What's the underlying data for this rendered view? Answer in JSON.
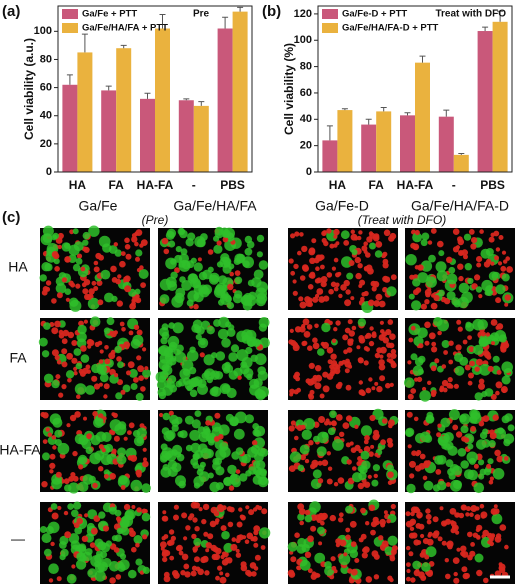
{
  "chart_data": [
    {
      "type": "bar",
      "panel_label": "(a)",
      "annotation": "Pre",
      "ylabel": "Cell viability (a.u.)",
      "categories": [
        "HA",
        "FA",
        "HA-FA",
        "-",
        "PBS"
      ],
      "series": [
        {
          "name": "Ga/Fe + PTT",
          "color": "#c9587a",
          "values": [
            62,
            58,
            52,
            51,
            102
          ],
          "errors": [
            7,
            3,
            4,
            1,
            8
          ]
        },
        {
          "name": "Ga/Fe/HA/FA + PTT",
          "color": "#eab23e",
          "values": [
            85,
            88,
            102,
            47,
            114
          ],
          "errors": [
            13,
            2,
            10,
            3,
            3
          ]
        }
      ],
      "ylim": [
        0,
        118
      ],
      "yticks": [
        0,
        20,
        40,
        60,
        80,
        100
      ],
      "legend": "upper left"
    },
    {
      "type": "bar",
      "panel_label": "(b)",
      "annotation": "Treat with DFO",
      "ylabel": "Cell viability (%)",
      "categories": [
        "HA",
        "FA",
        "HA-FA",
        "-",
        "PBS"
      ],
      "series": [
        {
          "name": "Ga/Fe-D + PTT",
          "color": "#c9587a",
          "values": [
            24,
            36,
            43,
            42,
            107
          ],
          "errors": [
            11,
            4,
            2,
            5,
            3
          ]
        },
        {
          "name": "Ga/Fe/HA/FA-D + PTT",
          "color": "#eab23e",
          "values": [
            47,
            46,
            83,
            13,
            114
          ],
          "errors": [
            1,
            3,
            5,
            1,
            8
          ]
        }
      ],
      "ylim": [
        0,
        126
      ],
      "yticks": [
        0,
        20,
        40,
        60,
        80,
        100,
        120
      ],
      "legend": "upper left"
    }
  ],
  "panel_c": {
    "panel_label": "(c)",
    "columns": [
      "Ga/Fe",
      "Ga/Fe/HA/FA",
      "Ga/Fe-D",
      "Ga/Fe/HA/FA-D"
    ],
    "notes": [
      "(Pre)",
      "(Treat with DFO)"
    ],
    "rows": [
      "HA",
      "FA",
      "HA-FA",
      "—"
    ]
  }
}
